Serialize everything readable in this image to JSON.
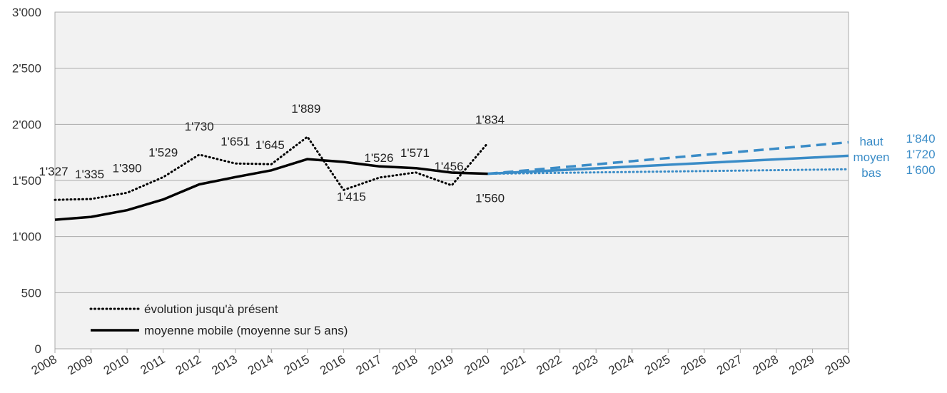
{
  "chart_data": {
    "type": "line",
    "title": "",
    "xlabel": "",
    "ylabel": "",
    "ylim": [
      0,
      3000
    ],
    "xlim": [
      2008,
      2030
    ],
    "grid": true,
    "legend_placement": "bottom-left",
    "y_ticks": [
      "0",
      "500",
      "1'000",
      "1'500",
      "2'000",
      "2'500",
      "3'000"
    ],
    "y_tick_values": [
      0,
      500,
      1000,
      1500,
      2000,
      2500,
      3000
    ],
    "x_ticks": [
      "2008",
      "2009",
      "2010",
      "2011",
      "2012",
      "2013",
      "2014",
      "2015",
      "2016",
      "2017",
      "2018",
      "2019",
      "2020",
      "2021",
      "2022",
      "2023",
      "2024",
      "2025",
      "2026",
      "2027",
      "2028",
      "2029",
      "2030"
    ],
    "colors": {
      "history": "#000000",
      "projection": "#3a8cc7",
      "plot_bg": "#f2f2f2",
      "grid": "#aaaaaa"
    },
    "series": [
      {
        "name": "évolution jusqu'à présent",
        "style": "dotted",
        "x": [
          2008,
          2009,
          2010,
          2011,
          2012,
          2013,
          2014,
          2015,
          2016,
          2017,
          2018,
          2019,
          2020
        ],
        "values": [
          1327,
          1335,
          1390,
          1529,
          1730,
          1651,
          1645,
          1889,
          1415,
          1526,
          1571,
          1456,
          1834
        ],
        "labels": [
          "1'327",
          "1'335",
          "1'390",
          "1'529",
          "1'730",
          "1'651",
          "1'645",
          "1'889",
          "1'415",
          "1'526",
          "1'571",
          "1'456",
          "1'834"
        ]
      },
      {
        "name": "moyenne mobile (moyenne sur 5 ans)",
        "style": "solid",
        "x": [
          2008,
          2009,
          2010,
          2011,
          2012,
          2013,
          2014,
          2015,
          2016,
          2017,
          2018,
          2019,
          2020
        ],
        "values": [
          1150,
          1175,
          1235,
          1330,
          1465,
          1530,
          1590,
          1690,
          1665,
          1625,
          1610,
          1570,
          1560
        ],
        "labels": [
          "",
          "",
          "",
          "",
          "",
          "",
          "",
          "",
          "",
          "",
          "",
          "",
          "1'560"
        ]
      },
      {
        "name": "haut",
        "style": "dashed",
        "x": [
          2020,
          2030
        ],
        "values": [
          1560,
          1840
        ],
        "end_label": "1'840"
      },
      {
        "name": "moyen",
        "style": "solid",
        "x": [
          2020,
          2030
        ],
        "values": [
          1560,
          1720
        ],
        "end_label": "1'720"
      },
      {
        "name": "bas",
        "style": "dotted",
        "x": [
          2020,
          2030
        ],
        "values": [
          1560,
          1600
        ],
        "end_label": "1'600"
      }
    ],
    "legend": [
      {
        "label": "évolution jusqu'à présent",
        "style": "dotted"
      },
      {
        "label": "moyenne mobile (moyenne sur 5 ans)",
        "style": "solid"
      }
    ]
  }
}
